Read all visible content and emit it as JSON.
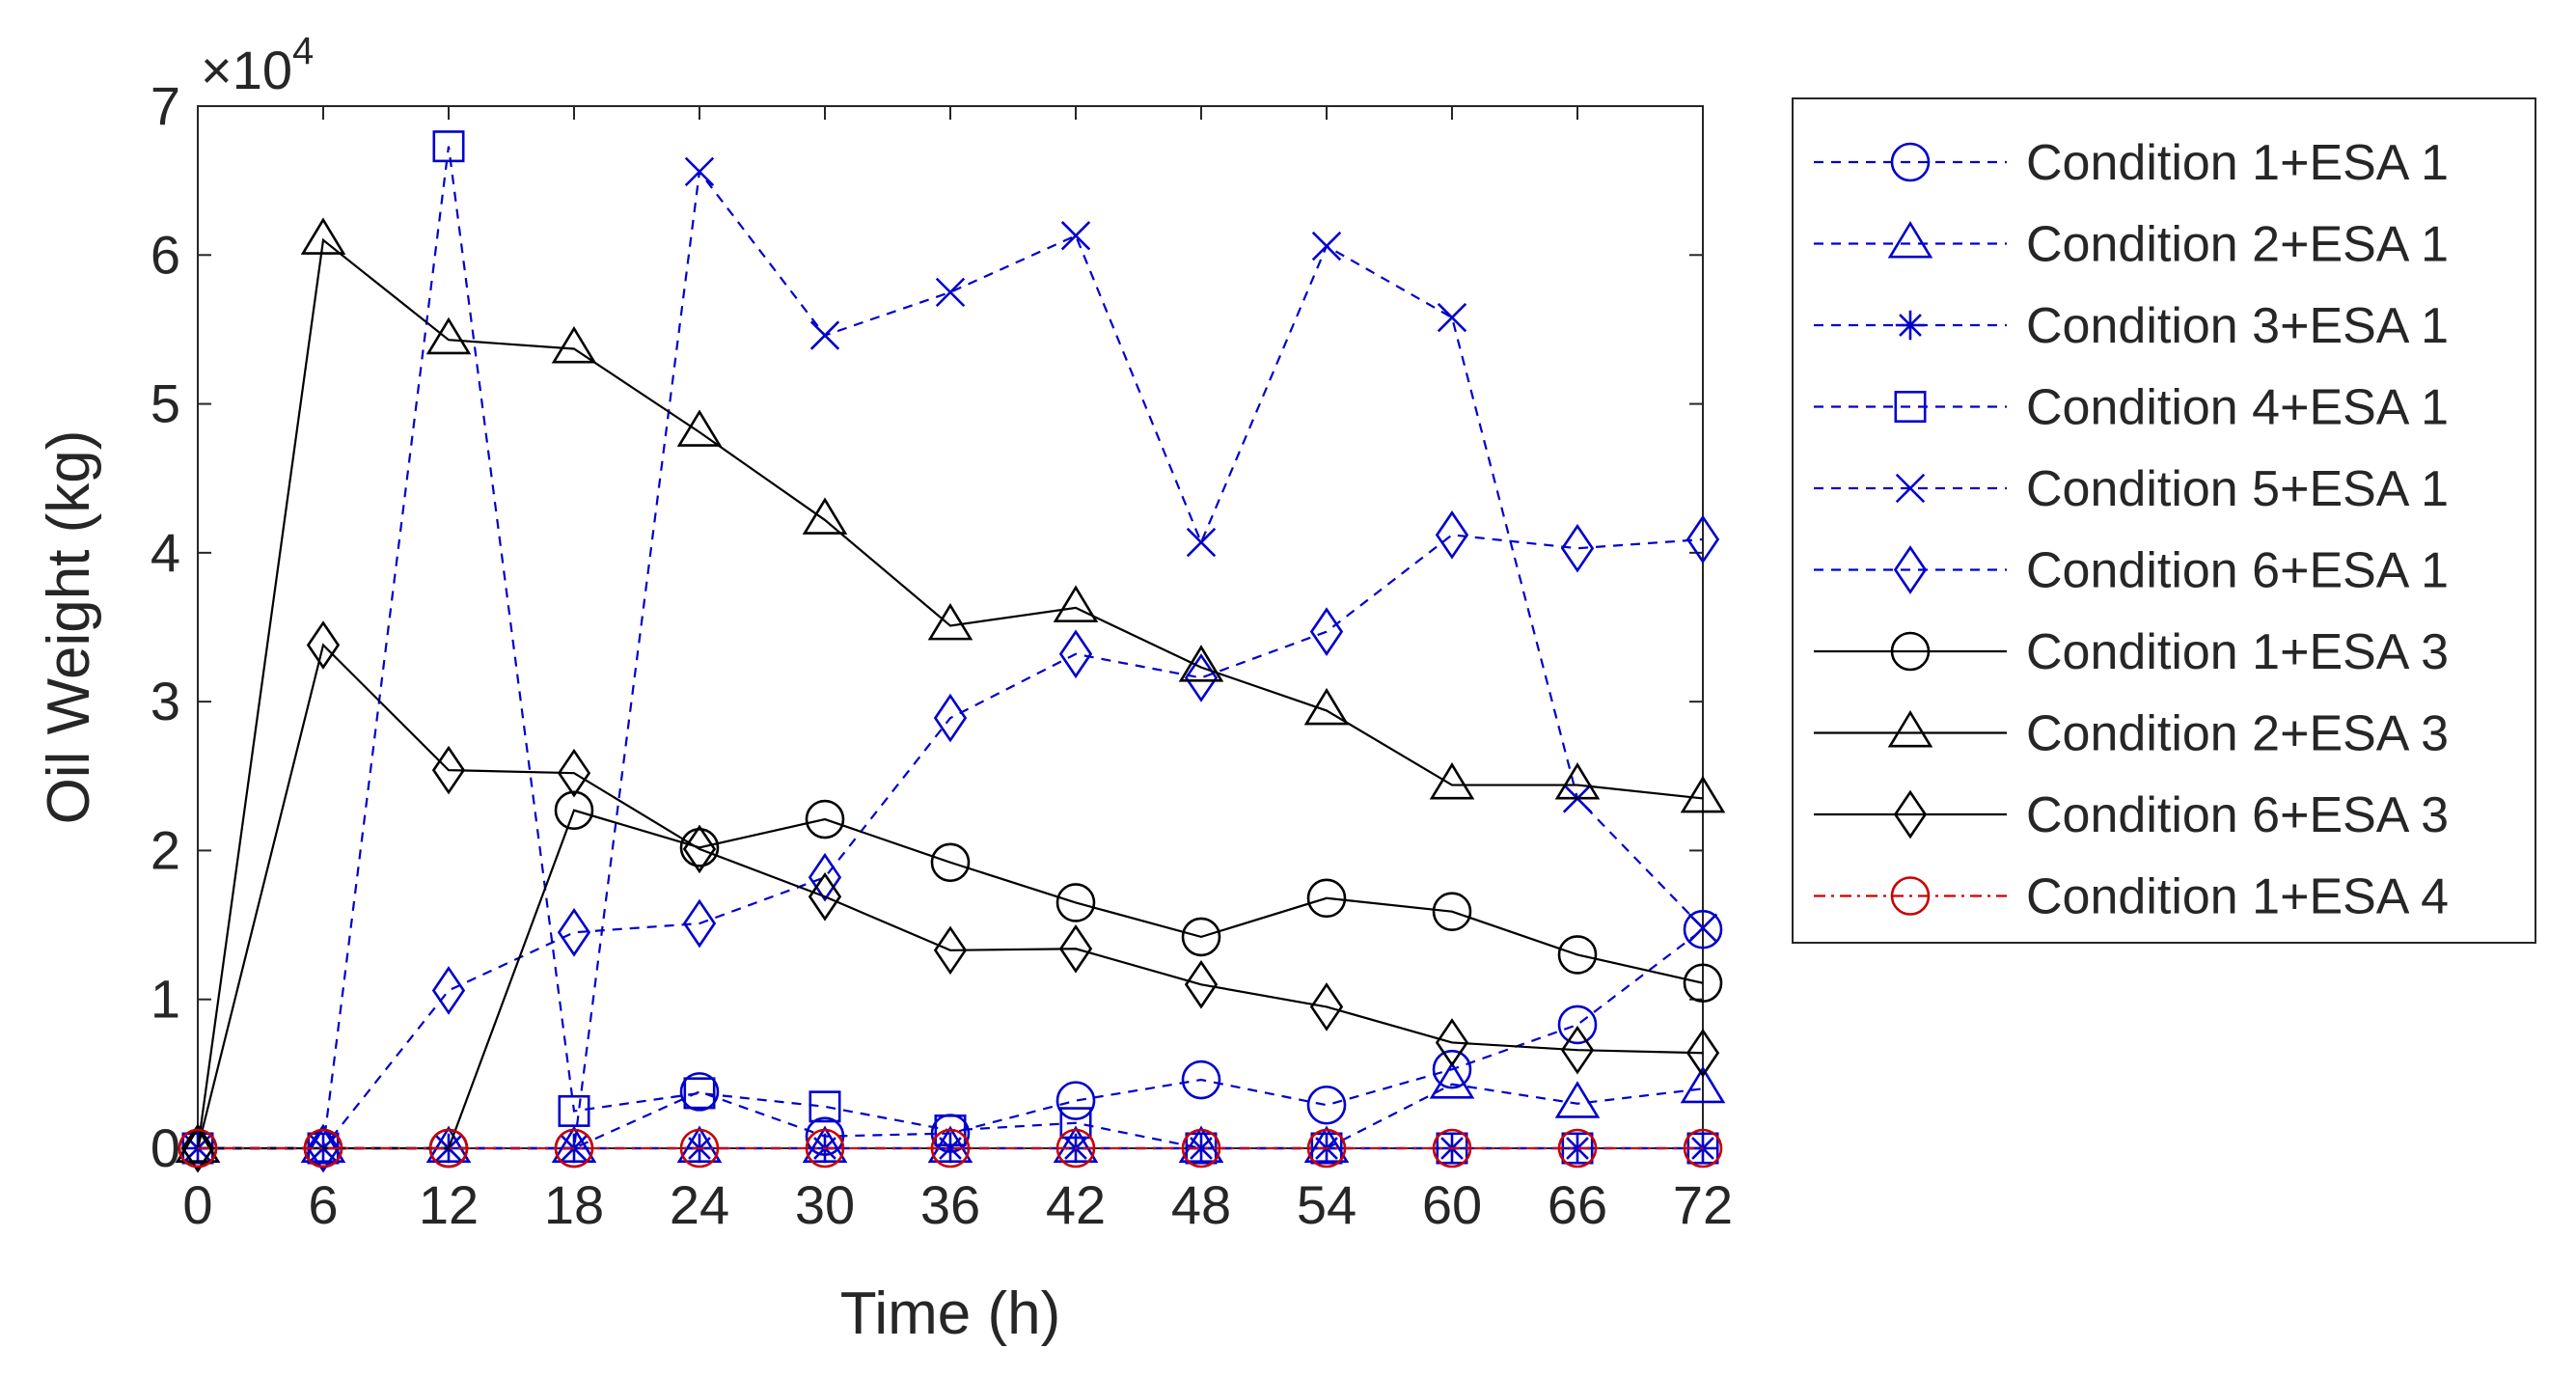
{
  "chart_data": {
    "type": "line",
    "title": "",
    "xlabel": "Time (h)",
    "ylabel": "Oil Weight (kg)",
    "y_exponent_label": "×10",
    "y_exponent_power": "4",
    "xlim": [
      0,
      72
    ],
    "ylim": [
      0,
      70000
    ],
    "x": [
      0,
      6,
      12,
      18,
      24,
      30,
      36,
      42,
      48,
      54,
      60,
      66,
      72
    ],
    "x_tick_labels": [
      "0",
      "6",
      "12",
      "18",
      "24",
      "30",
      "36",
      "42",
      "48",
      "54",
      "60",
      "66",
      "72"
    ],
    "y_tick_values": [
      0,
      10000,
      20000,
      30000,
      40000,
      50000,
      60000,
      70000
    ],
    "y_tick_labels": [
      "0",
      "1",
      "2",
      "3",
      "4",
      "5",
      "6",
      "7"
    ],
    "grid": false,
    "legend_position": "outside-right",
    "series": [
      {
        "name": "Condition 1+ESA 1",
        "color": "#0000cc",
        "line_style": "dashed",
        "marker": "circle",
        "values": [
          0,
          0,
          0,
          0,
          3800,
          800,
          1000,
          3200,
          4600,
          2900,
          5300,
          8300,
          14700
        ]
      },
      {
        "name": "Condition 2+ESA 1",
        "color": "#0000cc",
        "line_style": "dashed",
        "marker": "triangle",
        "values": [
          0,
          0,
          0,
          0,
          0,
          0,
          0,
          0,
          0,
          0,
          4300,
          3000,
          4000
        ]
      },
      {
        "name": "Condition 3+ESA 1",
        "color": "#0000cc",
        "line_style": "dashed",
        "marker": "asterisk",
        "values": [
          0,
          0,
          0,
          0,
          0,
          0,
          0,
          0,
          0,
          0,
          0,
          0,
          0
        ]
      },
      {
        "name": "Condition 4+ESA 1",
        "color": "#0000cc",
        "line_style": "dashed",
        "marker": "square",
        "values": [
          0,
          0,
          67300,
          2500,
          3700,
          2800,
          1200,
          1700,
          0,
          0,
          0,
          0,
          0
        ]
      },
      {
        "name": "Condition 5+ESA 1",
        "color": "#0000cc",
        "line_style": "dashed",
        "marker": "x",
        "values": [
          0,
          0,
          0,
          0,
          65600,
          54600,
          57500,
          61300,
          40700,
          60600,
          55800,
          23500,
          14800
        ]
      },
      {
        "name": "Condition 6+ESA 1",
        "color": "#0000cc",
        "line_style": "dashed",
        "marker": "diamond",
        "values": [
          0,
          0,
          10600,
          14500,
          15100,
          18200,
          28900,
          33200,
          31600,
          34700,
          41200,
          40300,
          40900
        ]
      },
      {
        "name": "Condition 1+ESA 3",
        "color": "#000000",
        "line_style": "solid",
        "marker": "circle",
        "values": [
          0,
          0,
          0,
          22700,
          20200,
          22100,
          19200,
          16500,
          14200,
          16800,
          15900,
          13000,
          11100
        ]
      },
      {
        "name": "Condition 2+ESA 3",
        "color": "#000000",
        "line_style": "solid",
        "marker": "triangle",
        "values": [
          0,
          61000,
          54300,
          53700,
          48100,
          42200,
          35100,
          36300,
          32300,
          29400,
          24400,
          24400,
          23500
        ]
      },
      {
        "name": "Condition 6+ESA 3",
        "color": "#000000",
        "line_style": "solid",
        "marker": "diamond",
        "values": [
          0,
          33800,
          25400,
          25200,
          20100,
          16900,
          13300,
          13400,
          11000,
          9500,
          7100,
          6600,
          6400
        ]
      },
      {
        "name": "Condition 1+ESA 4",
        "color": "#cc0000",
        "line_style": "dashdot",
        "marker": "circle",
        "values": [
          0,
          0,
          0,
          0,
          0,
          0,
          0,
          0,
          0,
          0,
          0,
          0,
          0
        ]
      }
    ]
  }
}
